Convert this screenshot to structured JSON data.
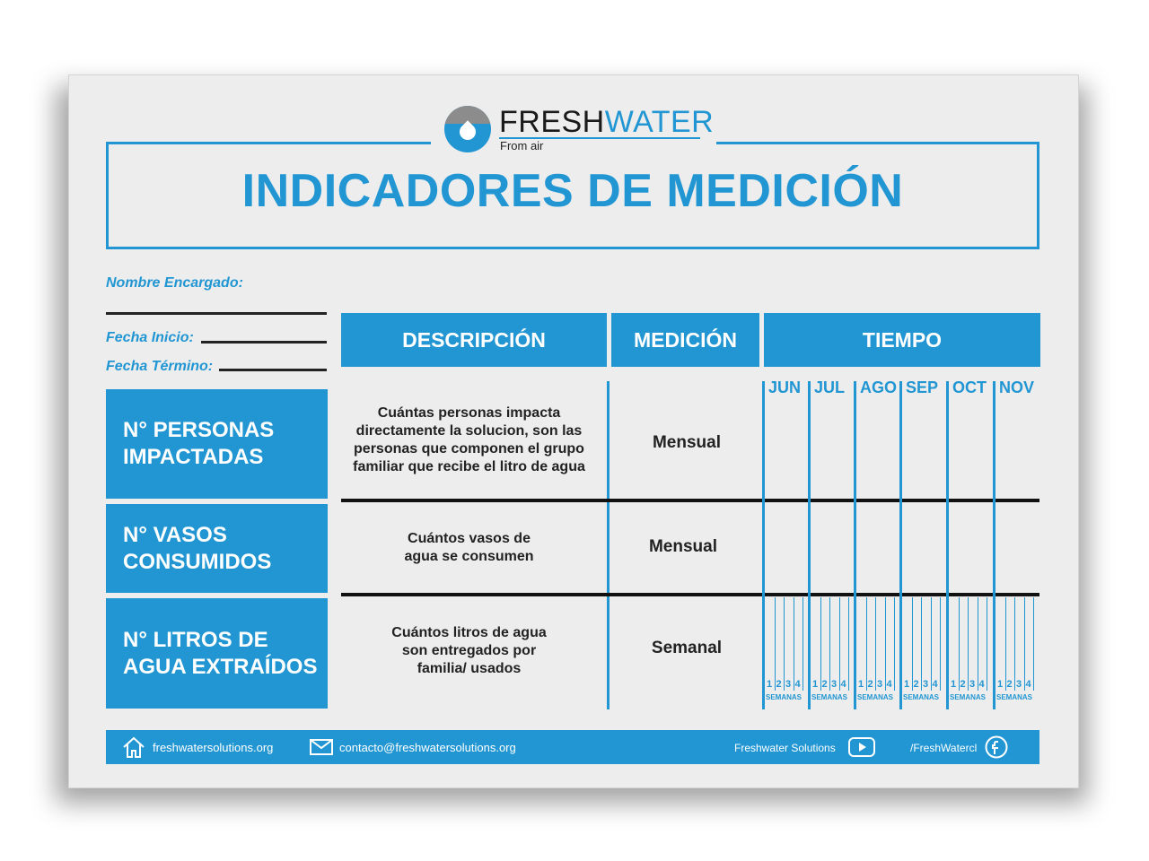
{
  "brand": {
    "fresh": "FRESH",
    "water": "WATER",
    "tagline": "From air"
  },
  "title": "INDICADORES DE MEDICIÓN",
  "form": {
    "encargado_label": "Nombre Encargado:",
    "inicio_label": "Fecha Inicio:",
    "termino_label": "Fecha Término:"
  },
  "headers": {
    "descripcion": "DESCRIPCIÓN",
    "medicion": "MEDICIÓN",
    "tiempo": "TIEMPO"
  },
  "months": [
    "JUN",
    "JUL",
    "AGO",
    "SEP",
    "OCT",
    "NOV"
  ],
  "weeks": {
    "numbers": [
      "1",
      "2",
      "3",
      "4"
    ],
    "label": "SEMANAS"
  },
  "rows": [
    {
      "category_line1": "N° PERSONAS",
      "category_line2": "IMPACTADAS",
      "description": [
        "Cuántas personas impacta",
        "directamente la solucion, son las",
        "personas que componen el grupo",
        "familiar que recibe el litro de agua"
      ],
      "measurement": "Mensual"
    },
    {
      "category_line1": "N° VASOS",
      "category_line2": "CONSUMIDOS",
      "description": [
        "Cuántos vasos de",
        "agua se consumen"
      ],
      "measurement": "Mensual"
    },
    {
      "category_line1": "N°  LITROS DE",
      "category_line2": "AGUA EXTRAÍDOS",
      "description": [
        "Cuántos litros de agua",
        "son entregados por",
        "familia/ usados"
      ],
      "measurement": "Semanal"
    }
  ],
  "footer": {
    "website": "freshwatersolutions.org",
    "email": "contacto@freshwatersolutions.org",
    "youtube": "Freshwater Solutions",
    "facebook": "/FreshWatercl"
  }
}
